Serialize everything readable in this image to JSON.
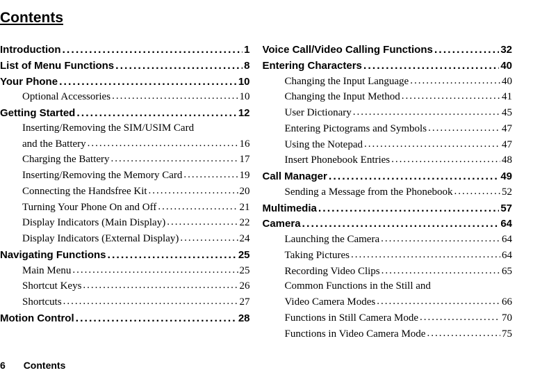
{
  "title": "Contents",
  "footer": {
    "page": "6",
    "label": "Contents"
  },
  "left": [
    {
      "type": "section",
      "label": "Introduction",
      "page": "1"
    },
    {
      "type": "section",
      "label": "List of Menu Functions",
      "page": "8"
    },
    {
      "type": "section",
      "label": "Your Phone",
      "page": "10"
    },
    {
      "type": "entry",
      "label": "Optional Accessories",
      "page": "10"
    },
    {
      "type": "section",
      "label": "Getting Started",
      "page": "12"
    },
    {
      "type": "wrap",
      "label": "Inserting/Removing the SIM/USIM Card"
    },
    {
      "type": "entry",
      "label": "and the Battery",
      "page": "16"
    },
    {
      "type": "entry",
      "label": "Charging the Battery",
      "page": "17"
    },
    {
      "type": "entry",
      "label": "Inserting/Removing the Memory Card",
      "page": "19"
    },
    {
      "type": "entry",
      "label": "Connecting the Handsfree Kit",
      "page": "20"
    },
    {
      "type": "entry",
      "label": "Turning Your Phone On and Off",
      "page": "21"
    },
    {
      "type": "entry",
      "label": "Display Indicators (Main Display)",
      "page": "22"
    },
    {
      "type": "entry",
      "label": "Display Indicators (External Display)",
      "page": "24"
    },
    {
      "type": "section",
      "label": "Navigating Functions",
      "page": "25"
    },
    {
      "type": "entry",
      "label": "Main Menu",
      "page": "25"
    },
    {
      "type": "entry",
      "label": "Shortcut Keys",
      "page": "26"
    },
    {
      "type": "entry",
      "label": "Shortcuts",
      "page": "27"
    },
    {
      "type": "section",
      "label": "Motion Control",
      "page": "28"
    }
  ],
  "right": [
    {
      "type": "section",
      "label": "Voice Call/Video Calling Functions",
      "page": "32"
    },
    {
      "type": "section",
      "label": "Entering Characters",
      "page": "40"
    },
    {
      "type": "entry",
      "label": "Changing the Input Language",
      "page": "40"
    },
    {
      "type": "entry",
      "label": "Changing the Input Method",
      "page": "41"
    },
    {
      "type": "entry",
      "label": "User Dictionary",
      "page": "45"
    },
    {
      "type": "entry",
      "label": "Entering Pictograms and Symbols",
      "page": "47"
    },
    {
      "type": "entry",
      "label": "Using the Notepad",
      "page": "47"
    },
    {
      "type": "entry",
      "label": "Insert Phonebook Entries",
      "page": "48"
    },
    {
      "type": "section",
      "label": "Call Manager",
      "page": "49"
    },
    {
      "type": "entry",
      "label": "Sending a Message from the Phonebook",
      "page": "52"
    },
    {
      "type": "section",
      "label": "Multimedia",
      "page": "57"
    },
    {
      "type": "section",
      "label": "Camera",
      "page": "64"
    },
    {
      "type": "entry",
      "label": "Launching the Camera",
      "page": "64"
    },
    {
      "type": "entry",
      "label": "Taking Pictures",
      "page": "64"
    },
    {
      "type": "entry",
      "label": "Recording Video Clips",
      "page": "65"
    },
    {
      "type": "wrap",
      "label": "Common Functions in the Still and"
    },
    {
      "type": "entry",
      "label": "Video Camera Modes",
      "page": "66"
    },
    {
      "type": "entry",
      "label": "Functions in Still Camera Mode",
      "page": "70"
    },
    {
      "type": "entry",
      "label": "Functions in Video Camera Mode",
      "page": "75"
    }
  ]
}
